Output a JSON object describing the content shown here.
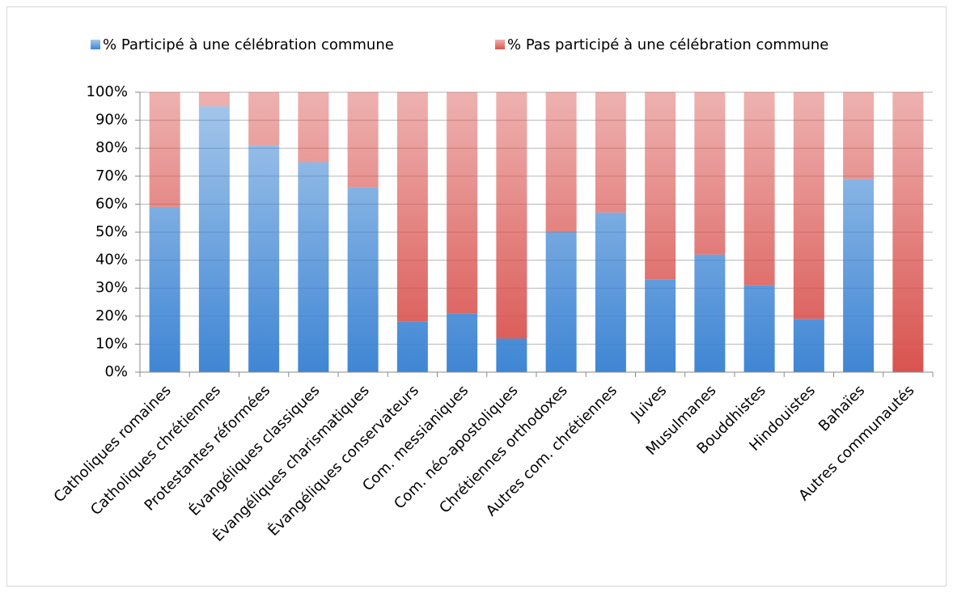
{
  "chart_data": {
    "type": "stacked_bar",
    "categories": [
      "Catholiques romaines",
      "Catholiques chrétiennes",
      "Protestantes réformées",
      "Évangéliques classiques",
      "Évangéliques charismatiques",
      "Évangéliques conservateurs",
      "Com. messianiques",
      "Com. néo-apostoliques",
      "Chrétiennes orthodoxes",
      "Autres com. chrétiennes",
      "Juives",
      "Musulmanes",
      "Bouddhistes",
      "Hindouistes",
      "Bahaïes",
      "Autres communautés"
    ],
    "series": [
      {
        "name": "% Participé à une célébration commune",
        "color": "#3f86d4",
        "values": [
          59,
          95,
          81,
          75,
          66,
          18,
          21,
          12,
          50,
          57,
          33,
          42,
          31,
          19,
          69,
          0
        ]
      },
      {
        "name": "% Pas participé à une célébration commune",
        "color": "#d9534f",
        "values": [
          41,
          5,
          19,
          25,
          34,
          82,
          79,
          88,
          50,
          43,
          67,
          58,
          69,
          81,
          31,
          100
        ]
      }
    ],
    "ylim": [
      0,
      100
    ],
    "yticks": [
      {
        "value": 0,
        "label": "0%"
      },
      {
        "value": 10,
        "label": "10%"
      },
      {
        "value": 20,
        "label": "20%"
      },
      {
        "value": 30,
        "label": "30%"
      },
      {
        "value": 40,
        "label": "40%"
      },
      {
        "value": 50,
        "label": "50%"
      },
      {
        "value": 60,
        "label": "60%"
      },
      {
        "value": 70,
        "label": "70%"
      },
      {
        "value": 80,
        "label": "80%"
      },
      {
        "value": 90,
        "label": "90%"
      },
      {
        "value": 100,
        "label": "100%"
      }
    ],
    "grid": true,
    "legend": "top"
  }
}
